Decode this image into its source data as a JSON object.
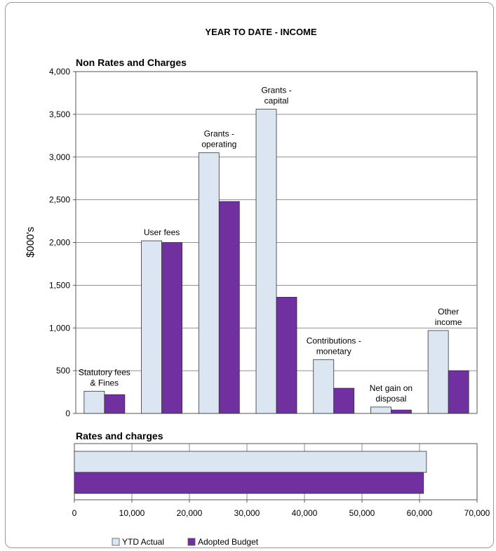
{
  "title": "YEAR TO DATE - INCOME",
  "legend": {
    "items": [
      {
        "label": "YTD Actual",
        "color": "#dce6f2"
      },
      {
        "label": "Adopted Budget",
        "color": "#7030a0"
      }
    ]
  },
  "chart_data": [
    {
      "type": "bar",
      "title": "Non Rates and Charges",
      "ylabel": "$000's",
      "ylim": [
        0,
        4000
      ],
      "yticks": [
        "0",
        "500",
        "1,000",
        "1,500",
        "2,000",
        "2,500",
        "3,000",
        "3,500",
        "4,000"
      ],
      "grid": true,
      "categories": [
        [
          "Statutory fees",
          "& Fines"
        ],
        [
          "User fees"
        ],
        [
          "Grants -",
          "operating"
        ],
        [
          "Grants -",
          "capital"
        ],
        [
          "Contributions -",
          "monetary"
        ],
        [
          "Net gain on",
          "disposal"
        ],
        [
          "Other",
          "income"
        ]
      ],
      "series": [
        {
          "name": "YTD Actual",
          "color": "#dce6f2",
          "values": [
            260,
            2020,
            3050,
            3560,
            630,
            75,
            970
          ]
        },
        {
          "name": "Adopted Budget",
          "color": "#7030a0",
          "values": [
            220,
            2000,
            2480,
            1360,
            295,
            40,
            500
          ]
        }
      ]
    },
    {
      "type": "bar",
      "orientation": "horizontal",
      "title": "Rates and charges",
      "xlim": [
        0,
        70000
      ],
      "xticks": [
        "0",
        "10,000",
        "20,000",
        "30,000",
        "40,000",
        "50,000",
        "60,000",
        "70,000"
      ],
      "grid": true,
      "series": [
        {
          "name": "YTD Actual",
          "color": "#dce6f2",
          "values": [
            61200
          ]
        },
        {
          "name": "Adopted Budget",
          "color": "#7030a0",
          "values": [
            60700
          ]
        }
      ]
    }
  ]
}
